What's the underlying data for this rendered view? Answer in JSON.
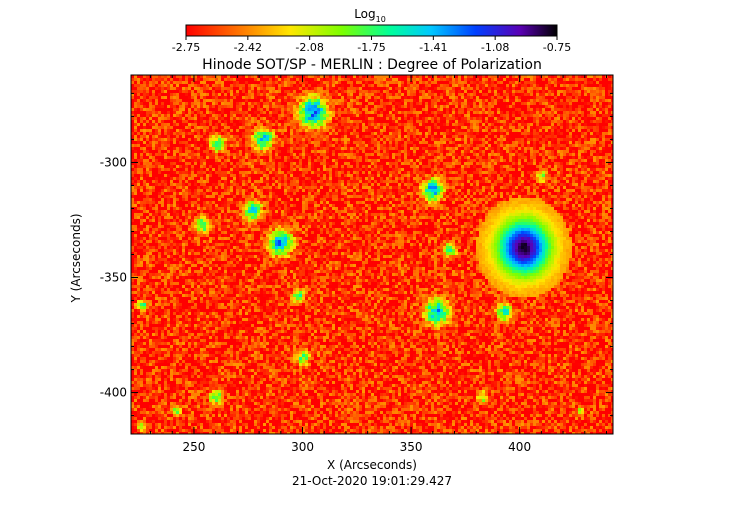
{
  "chart_data": {
    "type": "heatmap",
    "title": "Hinode SOT/SP - MERLIN : Degree of Polarization",
    "subtitle": "21-Oct-2020 19:01:29.427",
    "xlabel": "X (Arcseconds)",
    "ylabel": "Y (Arcseconds)",
    "xlim": [
      221,
      443
    ],
    "ylim": [
      -418,
      -262
    ],
    "x_ticks": [
      250,
      300,
      350,
      400
    ],
    "y_ticks": [
      -300,
      -350,
      -400
    ],
    "colorbar": {
      "label_base": "Log",
      "label_sub": "10",
      "colormap": "rainbow (red = low, violet/black = high)",
      "range": [
        -2.75,
        -0.75
      ],
      "ticks": [
        "-2.75",
        "-2.42",
        "-2.08",
        "-1.75",
        "-1.41",
        "-1.08",
        "-0.75"
      ]
    },
    "features": [
      {
        "type": "sunspot",
        "x": 402,
        "y": -337,
        "radius_arcsec": 11,
        "log10_value": -0.8
      },
      {
        "type": "network",
        "x": 305,
        "y": -278,
        "radius_arcsec": 9,
        "log10_value": -1.3
      },
      {
        "type": "network",
        "x": 282,
        "y": -290,
        "radius_arcsec": 7,
        "log10_value": -1.5
      },
      {
        "type": "network",
        "x": 261,
        "y": -292,
        "radius_arcsec": 6,
        "log10_value": -1.7
      },
      {
        "type": "network",
        "x": 290,
        "y": -335,
        "radius_arcsec": 8,
        "log10_value": -1.4
      },
      {
        "type": "network",
        "x": 298,
        "y": -358,
        "radius_arcsec": 5,
        "log10_value": -1.7
      },
      {
        "type": "network",
        "x": 277,
        "y": -321,
        "radius_arcsec": 7,
        "log10_value": -1.6
      },
      {
        "type": "network",
        "x": 254,
        "y": -327,
        "radius_arcsec": 6,
        "log10_value": -1.7
      },
      {
        "type": "network",
        "x": 360,
        "y": -312,
        "radius_arcsec": 7,
        "log10_value": -1.4
      },
      {
        "type": "network",
        "x": 362,
        "y": -365,
        "radius_arcsec": 8,
        "log10_value": -1.4
      },
      {
        "type": "network",
        "x": 368,
        "y": -338,
        "radius_arcsec": 5,
        "log10_value": -1.7
      },
      {
        "type": "network",
        "x": 393,
        "y": -365,
        "radius_arcsec": 6,
        "log10_value": -1.6
      },
      {
        "type": "network",
        "x": 410,
        "y": -306,
        "radius_arcsec": 5,
        "log10_value": -1.9
      },
      {
        "type": "network",
        "x": 226,
        "y": -362,
        "radius_arcsec": 4,
        "log10_value": -1.7
      },
      {
        "type": "network",
        "x": 300,
        "y": -385,
        "radius_arcsec": 6,
        "log10_value": -1.8
      },
      {
        "type": "network",
        "x": 260,
        "y": -402,
        "radius_arcsec": 6,
        "log10_value": -1.8
      },
      {
        "type": "network",
        "x": 242,
        "y": -408,
        "radius_arcsec": 4,
        "log10_value": -1.9
      },
      {
        "type": "network",
        "x": 383,
        "y": -402,
        "radius_arcsec": 5,
        "log10_value": -1.9
      },
      {
        "type": "network",
        "x": 428,
        "y": -408,
        "radius_arcsec": 4,
        "log10_value": -2.0
      },
      {
        "type": "network",
        "x": 226,
        "y": -415,
        "radius_arcsec": 4,
        "log10_value": -1.9
      }
    ]
  }
}
